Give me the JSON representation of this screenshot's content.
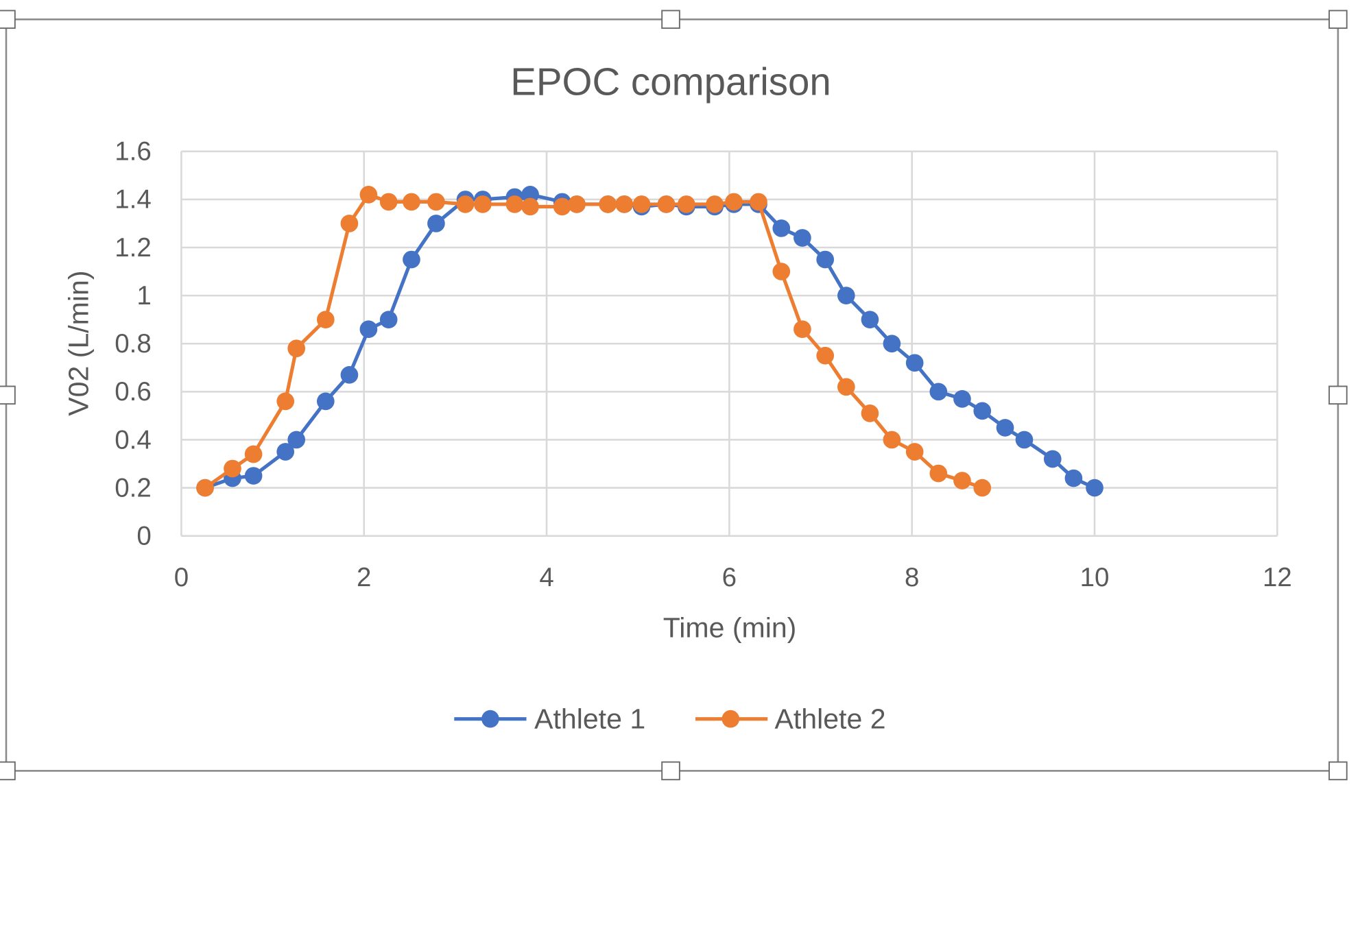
{
  "chart_data": {
    "type": "line",
    "title": "EPOC comparison",
    "xlabel": "Time (min)",
    "ylabel": "V02 (L/min)",
    "xlim": [
      0,
      12
    ],
    "ylim": [
      0,
      1.6
    ],
    "xticks": [
      "0",
      "2",
      "4",
      "6",
      "8",
      "10",
      "12"
    ],
    "yticks": [
      "0",
      "0.2",
      "0.4",
      "0.6",
      "0.8",
      "1",
      "1.2",
      "1.4",
      "1.6"
    ],
    "grid": true,
    "legend_position": "bottom",
    "markers": "circle",
    "series": [
      {
        "name": "Athlete 1",
        "color": "#4472C4",
        "x": [
          0.26,
          0.56,
          0.79,
          1.14,
          1.26,
          1.58,
          1.84,
          2.05,
          2.27,
          2.52,
          2.79,
          3.11,
          3.3,
          3.65,
          3.82,
          4.17,
          4.33,
          4.67,
          4.85,
          5.04,
          5.31,
          5.53,
          5.84,
          6.05,
          6.32,
          6.57,
          6.8,
          7.05,
          7.28,
          7.54,
          7.78,
          8.03,
          8.29,
          8.55,
          8.77,
          9.02,
          9.23,
          9.54,
          9.77,
          10.0
        ],
        "y": [
          0.2,
          0.24,
          0.25,
          0.35,
          0.4,
          0.56,
          0.67,
          0.86,
          0.9,
          1.15,
          1.3,
          1.4,
          1.4,
          1.41,
          1.42,
          1.39,
          1.38,
          1.38,
          1.38,
          1.37,
          1.38,
          1.37,
          1.37,
          1.38,
          1.38,
          1.28,
          1.24,
          1.15,
          1.0,
          0.9,
          0.8,
          0.72,
          0.6,
          0.57,
          0.52,
          0.45,
          0.4,
          0.32,
          0.24,
          0.2
        ]
      },
      {
        "name": "Athlete 2",
        "color": "#ED7D31",
        "x": [
          0.26,
          0.56,
          0.79,
          1.14,
          1.26,
          1.58,
          1.84,
          2.05,
          2.27,
          2.52,
          2.79,
          3.11,
          3.3,
          3.65,
          3.82,
          4.17,
          4.33,
          4.67,
          4.85,
          5.04,
          5.31,
          5.53,
          5.84,
          6.05,
          6.32,
          6.57,
          6.8,
          7.05,
          7.28,
          7.54,
          7.78,
          8.03,
          8.29,
          8.55,
          8.77
        ],
        "y": [
          0.2,
          0.28,
          0.34,
          0.56,
          0.78,
          0.9,
          1.3,
          1.42,
          1.39,
          1.39,
          1.39,
          1.38,
          1.38,
          1.38,
          1.37,
          1.37,
          1.38,
          1.38,
          1.38,
          1.38,
          1.38,
          1.38,
          1.38,
          1.39,
          1.39,
          1.1,
          0.86,
          0.75,
          0.62,
          0.51,
          0.4,
          0.35,
          0.26,
          0.23,
          0.2
        ]
      }
    ]
  }
}
